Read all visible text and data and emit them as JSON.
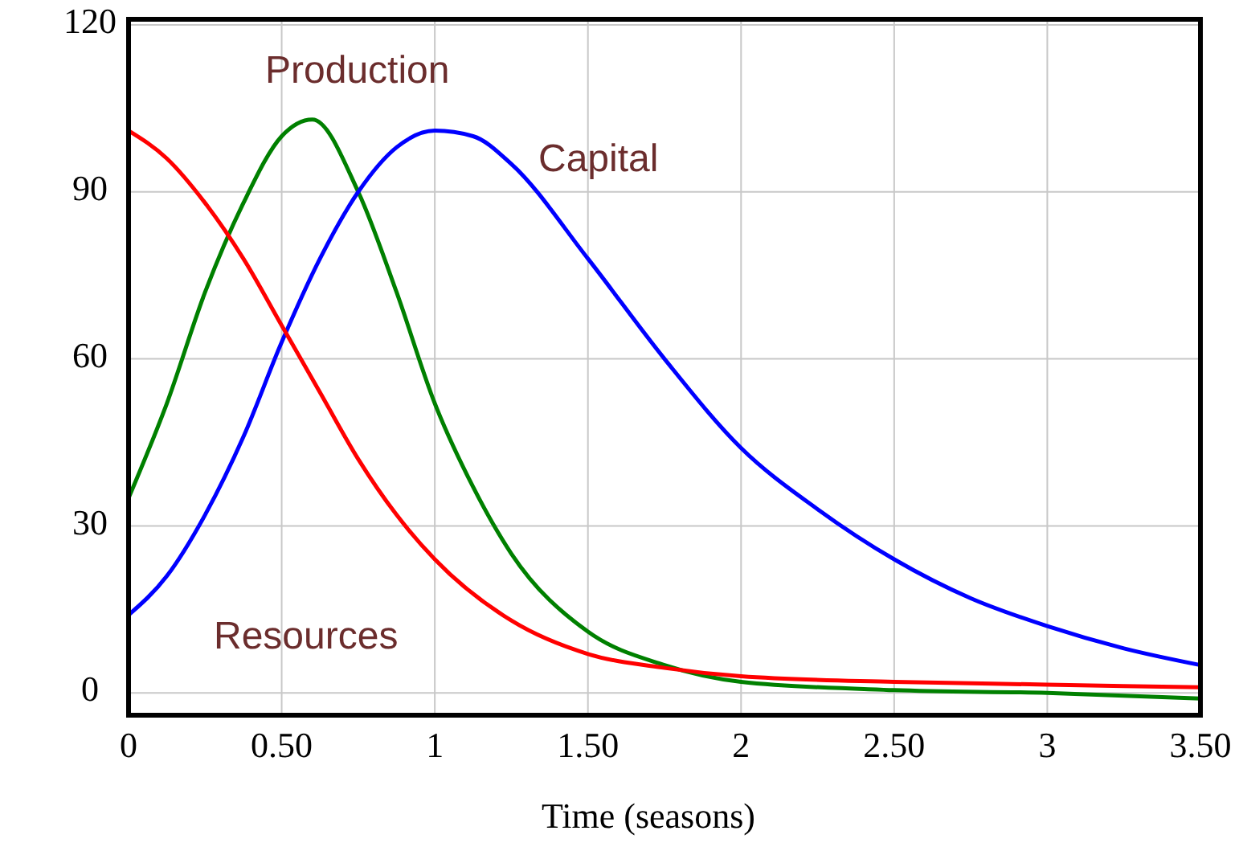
{
  "chart_data": {
    "type": "line",
    "xlabel": "Time (seasons)",
    "xlim": [
      0,
      3.5
    ],
    "ylim": [
      -4,
      121
    ],
    "xticks": [
      0,
      {
        "value": 0.5,
        "label": "0.50"
      },
      1,
      {
        "value": 1.5,
        "label": "1.50"
      },
      2,
      {
        "value": 2.5,
        "label": "2.50"
      },
      3,
      {
        "value": 3.5,
        "label": "3.50"
      }
    ],
    "yticks": [
      0,
      30,
      60,
      90,
      120
    ],
    "grid": true,
    "series": [
      {
        "name": "Production",
        "color": "#008000",
        "x": [
          0,
          0.125,
          0.25,
          0.375,
          0.5,
          0.6,
          0.75,
          0.875,
          1,
          1.125,
          1.25,
          1.5,
          1.75,
          2,
          2.5,
          3,
          3.5
        ],
        "values": [
          35,
          52,
          72,
          88,
          100,
          103,
          90,
          72,
          52,
          37,
          25,
          11,
          5,
          2,
          0.5,
          0,
          -1
        ]
      },
      {
        "name": "Capital",
        "color": "#0000ff",
        "x": [
          0,
          0.125,
          0.25,
          0.375,
          0.5,
          0.625,
          0.75,
          0.875,
          1,
          1.125,
          1.25,
          1.5,
          1.75,
          2,
          2.25,
          2.5,
          2.75,
          3,
          3.25,
          3.5
        ],
        "values": [
          14,
          21,
          32,
          46,
          63,
          78,
          90,
          98,
          101,
          100,
          95,
          78,
          60,
          44,
          33,
          24,
          17,
          12,
          8,
          5
        ]
      },
      {
        "name": "Resources",
        "color": "#ff0000",
        "x": [
          0,
          0.125,
          0.25,
          0.375,
          0.5,
          0.625,
          0.75,
          0.875,
          1,
          1.25,
          1.5,
          1.75,
          2,
          2.5,
          3,
          3.5
        ],
        "values": [
          101,
          96,
          88,
          78,
          66,
          54,
          42,
          32,
          24,
          13,
          7,
          4.5,
          3,
          2,
          1.5,
          1
        ]
      }
    ]
  }
}
